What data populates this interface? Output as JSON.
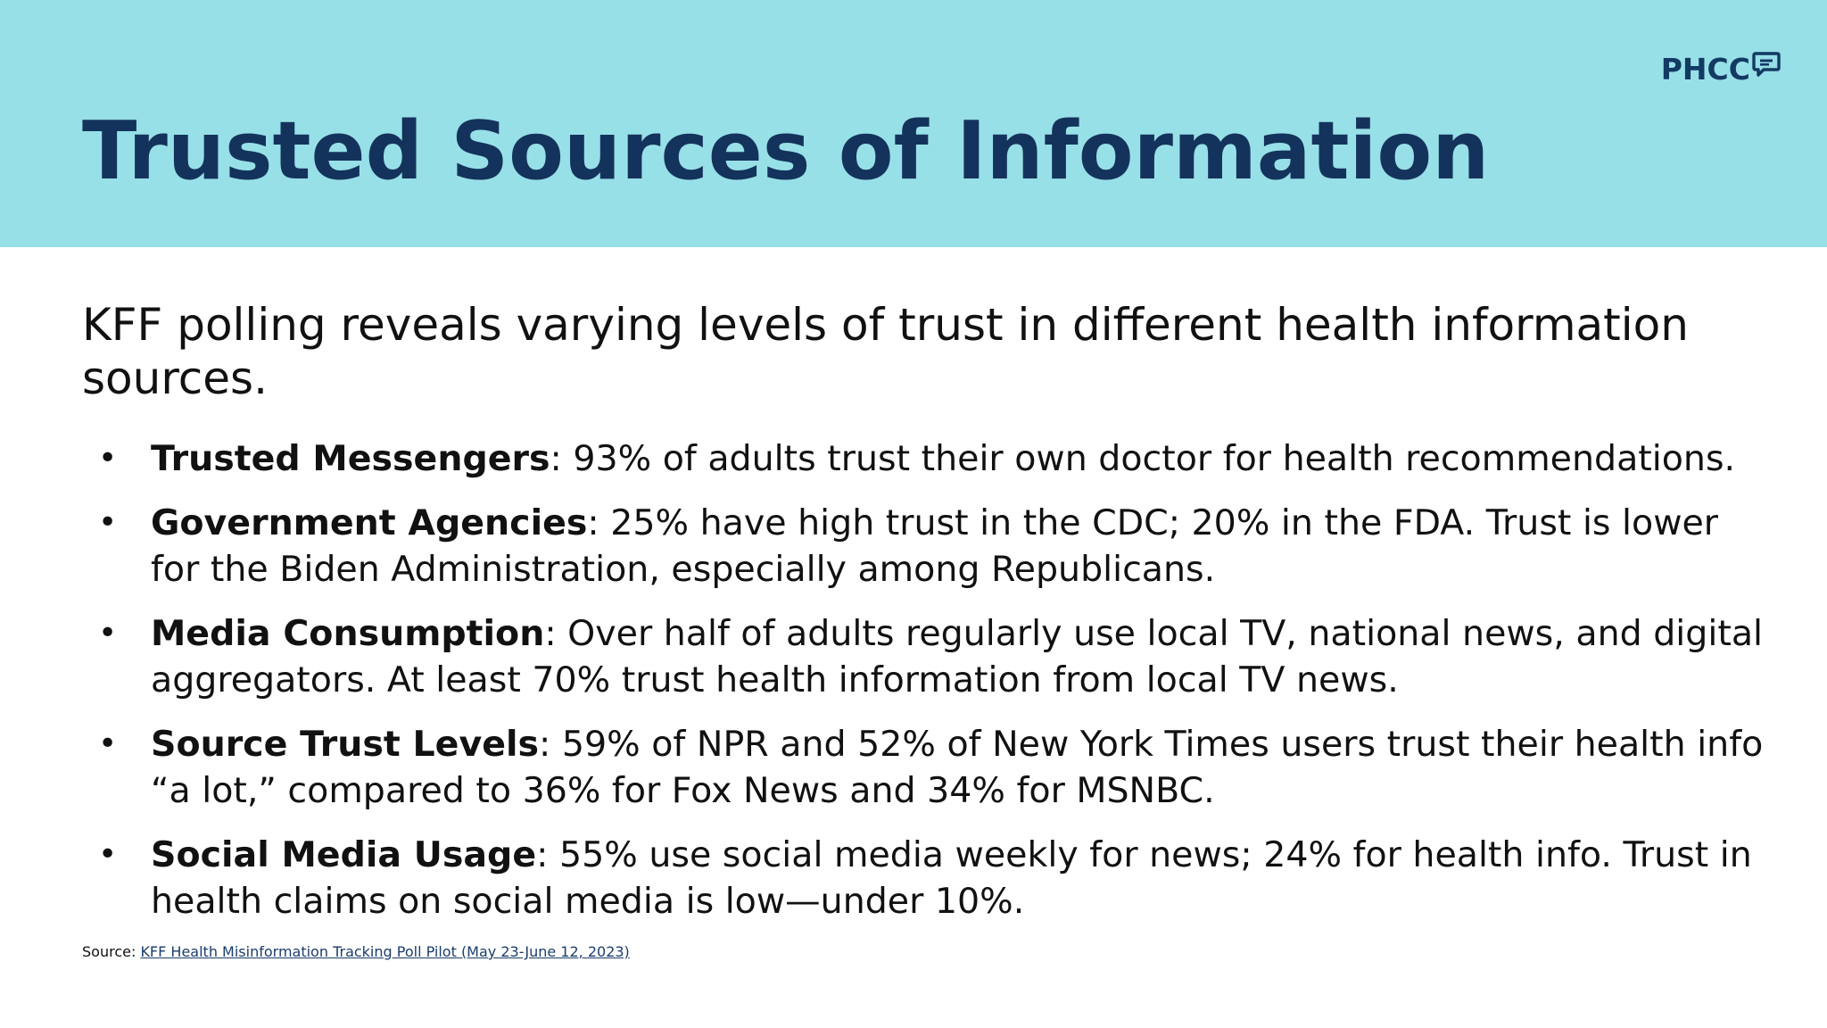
{
  "logo": {
    "text": "PHCC",
    "icon": "speech-bubble-icon",
    "color": "#123a63"
  },
  "colors": {
    "header_band": "#98e0e7",
    "title": "#14335c",
    "body_text": "#111111",
    "link": "#1a3d6e"
  },
  "title": "Trusted Sources of Information",
  "intro": "KFF polling reveals varying levels of trust in different health information sources.",
  "bullets": [
    {
      "term": "Trusted Messengers",
      "text": ": 93% of adults trust their own doctor for health recommendations."
    },
    {
      "term": "Government Agencies",
      "text": ": 25% have high trust in the CDC; 20% in the FDA. Trust is lower for the Biden Administration, especially among Republicans."
    },
    {
      "term": "Media Consumption",
      "text": ": Over half of adults regularly use local TV, national news, and digital aggregators. At least 70% trust health information from local TV news."
    },
    {
      "term": "Source Trust Levels",
      "text": ": 59% of NPR and 52% of New York Times users trust their health info “a lot,” compared to 36% for Fox News and 34% for MSNBC."
    },
    {
      "term": "Social Media Usage",
      "text": ": 55% use social media weekly for news; 24% for health info. Trust in health claims on social media is low—under 10%."
    }
  ],
  "source": {
    "label": "Source: ",
    "link_text": "KFF Health Misinformation Tracking Poll Pilot (May 23-June 12, 2023)"
  }
}
